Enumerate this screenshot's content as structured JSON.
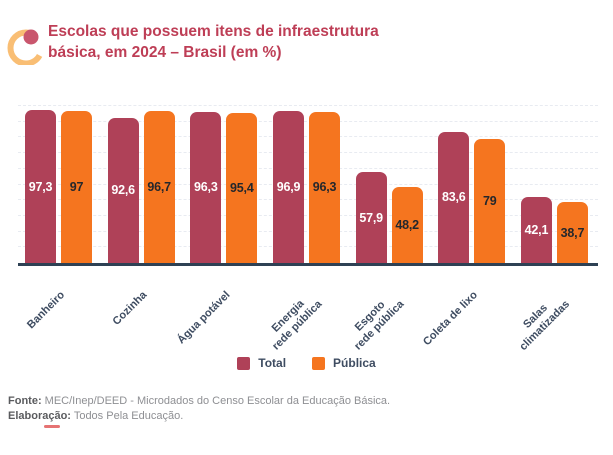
{
  "header": {
    "title": "Escolas que possuem itens de infraestrutura\nbásica, em 2024 – Brasil (em %)",
    "title_color": "#be3e56",
    "icon": "arc-with-dot-icon",
    "icon_colors": {
      "arc": "#f9be74",
      "dot": "#c9566d"
    }
  },
  "chart_data": {
    "type": "bar",
    "title": "Escolas que possuem itens de infraestrutura básica, em 2024 – Brasil (em %)",
    "categories": [
      "Banheiro",
      "Cozinha",
      "Água potável",
      "Energia\nrede pública",
      "Esgoto\nrede pública",
      "Coleta de lixo",
      "Salas\nclimatizadas"
    ],
    "series": [
      {
        "name": "Total",
        "color": "#af4158",
        "label_color": "#ffffff",
        "values": [
          97.3,
          92.6,
          96.3,
          96.9,
          57.9,
          83.6,
          42.1
        ],
        "labels": [
          "97,3",
          "92,6",
          "96,3",
          "96,9",
          "57,9",
          "83,6",
          "42,1"
        ]
      },
      {
        "name": "Pública",
        "color": "#f5751f",
        "label_color": "#24272c",
        "values": [
          97.0,
          96.7,
          95.4,
          96.3,
          48.2,
          79.0,
          38.7
        ],
        "labels": [
          "97",
          "96,7",
          "95,4",
          "96,3",
          "48,2",
          "79",
          "38,7"
        ]
      }
    ],
    "ylim": [
      0,
      100
    ],
    "grid": {
      "visible": true,
      "step": 10,
      "style": "dashed",
      "color": "#e8ebf1"
    },
    "axis_line_color": "#2e4154",
    "x_label_color": "#3e4c61",
    "legend_position": "bottom-center",
    "value_labels": "centered-inside-bars",
    "unit": "%"
  },
  "footer": {
    "fonte_label": "Fonte:",
    "fonte_text": " MEC/Inep/DEED - Microdados do Censo Escolar da Educação Básica.",
    "elaboracao_label": "Elaboração:",
    "elaboracao_text": " Todos Pela Educação."
  }
}
